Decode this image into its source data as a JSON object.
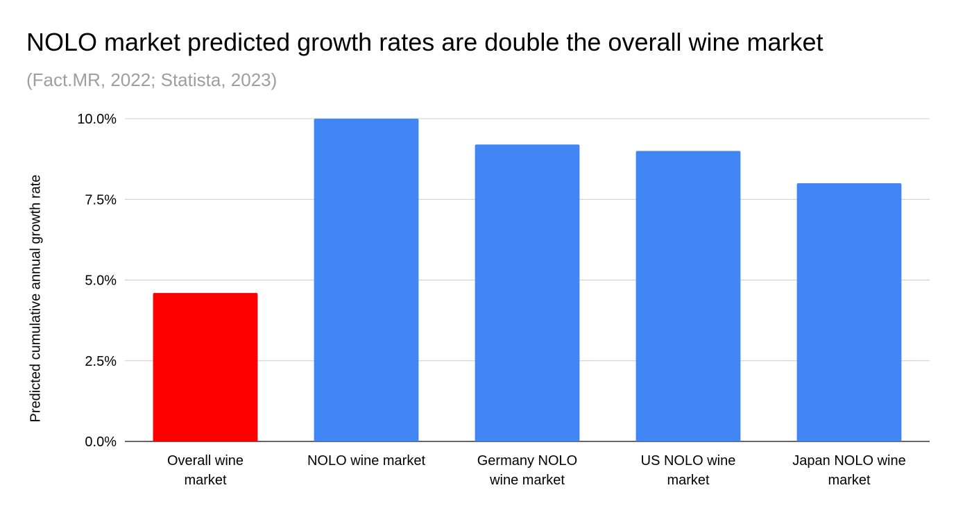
{
  "chart_data": {
    "type": "bar",
    "title": "NOLO market predicted growth rates are double the overall wine market",
    "subtitle": "(Fact.MR, 2022; Statista, 2023)",
    "xlabel": "",
    "ylabel": "Predicted cumulative annual growth rate",
    "categories": [
      [
        "Overall wine",
        "market"
      ],
      [
        "NOLO wine market"
      ],
      [
        "Germany NOLO",
        "wine market"
      ],
      [
        "US NOLO wine",
        "market"
      ],
      [
        "Japan NOLO wine",
        "market"
      ]
    ],
    "values": [
      4.6,
      10.0,
      9.2,
      9.0,
      8.0
    ],
    "bar_colors": [
      "#ff0000",
      "#4285f4",
      "#4285f4",
      "#4285f4",
      "#4285f4"
    ],
    "ylim": [
      0,
      10
    ],
    "yticks": [
      0,
      2.5,
      5,
      7.5,
      10
    ],
    "ytick_labels": [
      "0.0%",
      "2.5%",
      "5.0%",
      "7.5%",
      "10.0%"
    ],
    "grid": true,
    "legend": "none"
  }
}
